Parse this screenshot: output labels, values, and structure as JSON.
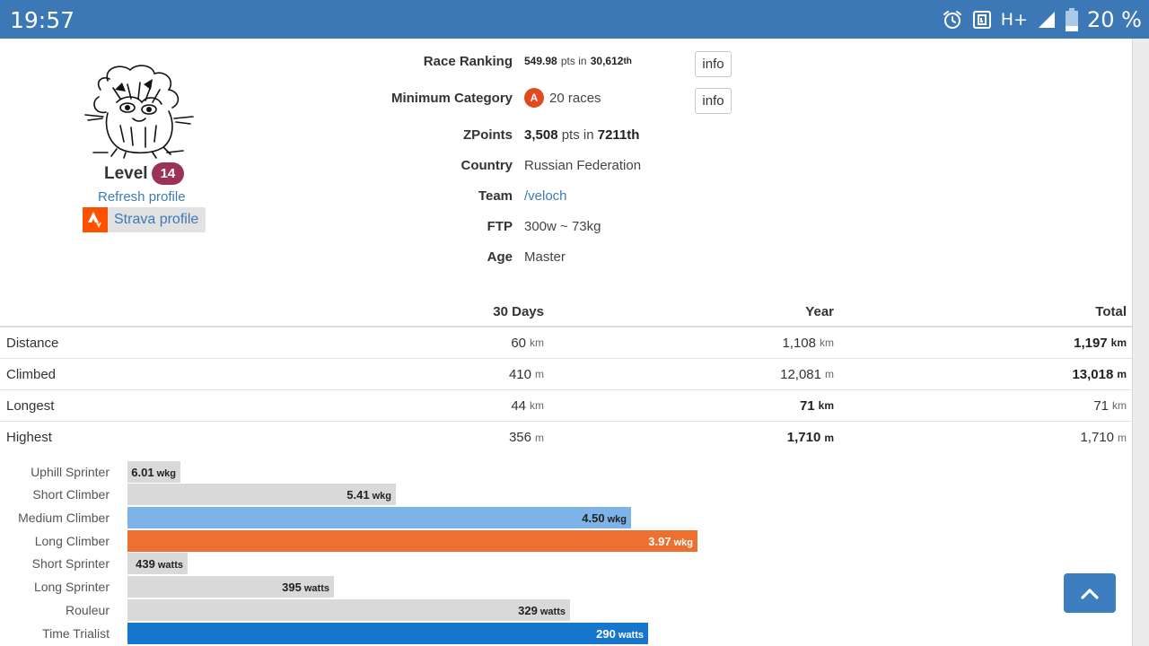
{
  "status_bar": {
    "time": "19:57",
    "network": "H+",
    "battery": "20 %"
  },
  "profile": {
    "level_label": "Level",
    "level_value": "14",
    "refresh_link": "Refresh profile",
    "strava_link": "Strava profile"
  },
  "info": {
    "race_ranking": {
      "label": "Race Ranking",
      "pts": "549.98",
      "pts_text": "pts in",
      "rank": "30,612",
      "suffix": "th",
      "button": "info"
    },
    "minimum_category": {
      "label": "Minimum Category",
      "badge": "A",
      "races": "20 races",
      "button": "info"
    },
    "zpoints": {
      "label": "ZPoints",
      "value": "3,508",
      "pts_text": "pts in",
      "rank": "7211th"
    },
    "country": {
      "label": "Country",
      "value": "Russian Federation"
    },
    "team": {
      "label": "Team",
      "value": "/veloch"
    },
    "ftp": {
      "label": "FTP",
      "value": "300w ~ 73kg"
    },
    "age": {
      "label": "Age",
      "value": "Master"
    }
  },
  "stats": {
    "headers": [
      "30 Days",
      "Year",
      "Total"
    ],
    "rows": [
      {
        "label": "Distance",
        "d30": "60",
        "d30_unit": "km",
        "year": "1,108",
        "year_unit": "km",
        "total": "1,197",
        "total_unit": "km"
      },
      {
        "label": "Climbed",
        "d30": "410",
        "d30_unit": "m",
        "year": "12,081",
        "year_unit": "m",
        "total": "13,018",
        "total_unit": "m"
      },
      {
        "label": "Longest",
        "d30": "44",
        "d30_unit": "km",
        "year": "71",
        "year_unit": "km",
        "total": "71",
        "total_unit": "km"
      },
      {
        "label": "Highest",
        "d30": "356",
        "d30_unit": "m",
        "year": "1,710",
        "year_unit": "m",
        "total": "1,710",
        "total_unit": "m"
      }
    ]
  },
  "power_profile": [
    {
      "label": "Uphill Sprinter",
      "value": "6.01",
      "unit": "wkg",
      "fraction": 0.093,
      "color": "#d9d9d9"
    },
    {
      "label": "Short Climber",
      "value": "5.41",
      "unit": "wkg",
      "fraction": 0.471,
      "color": "#d9d9d9"
    },
    {
      "label": "Medium Climber",
      "value": "4.50",
      "unit": "wkg",
      "fraction": 0.884,
      "color": "#7cb3e8"
    },
    {
      "label": "Long Climber",
      "value": "3.97",
      "unit": "wkg",
      "fraction": 1.0,
      "color": "#ee7031"
    },
    {
      "label": "Short Sprinter",
      "value": "439",
      "unit": "watts",
      "fraction": 0.105,
      "color": "#d9d9d9"
    },
    {
      "label": "Long Sprinter",
      "value": "395",
      "unit": "watts",
      "fraction": 0.362,
      "color": "#d9d9d9"
    },
    {
      "label": "Rouleur",
      "value": "329",
      "unit": "watts",
      "fraction": 0.777,
      "color": "#d9d9d9"
    },
    {
      "label": "Time Trialist",
      "value": "290",
      "unit": "watts",
      "fraction": 0.914,
      "color": "#1576cc"
    }
  ]
}
